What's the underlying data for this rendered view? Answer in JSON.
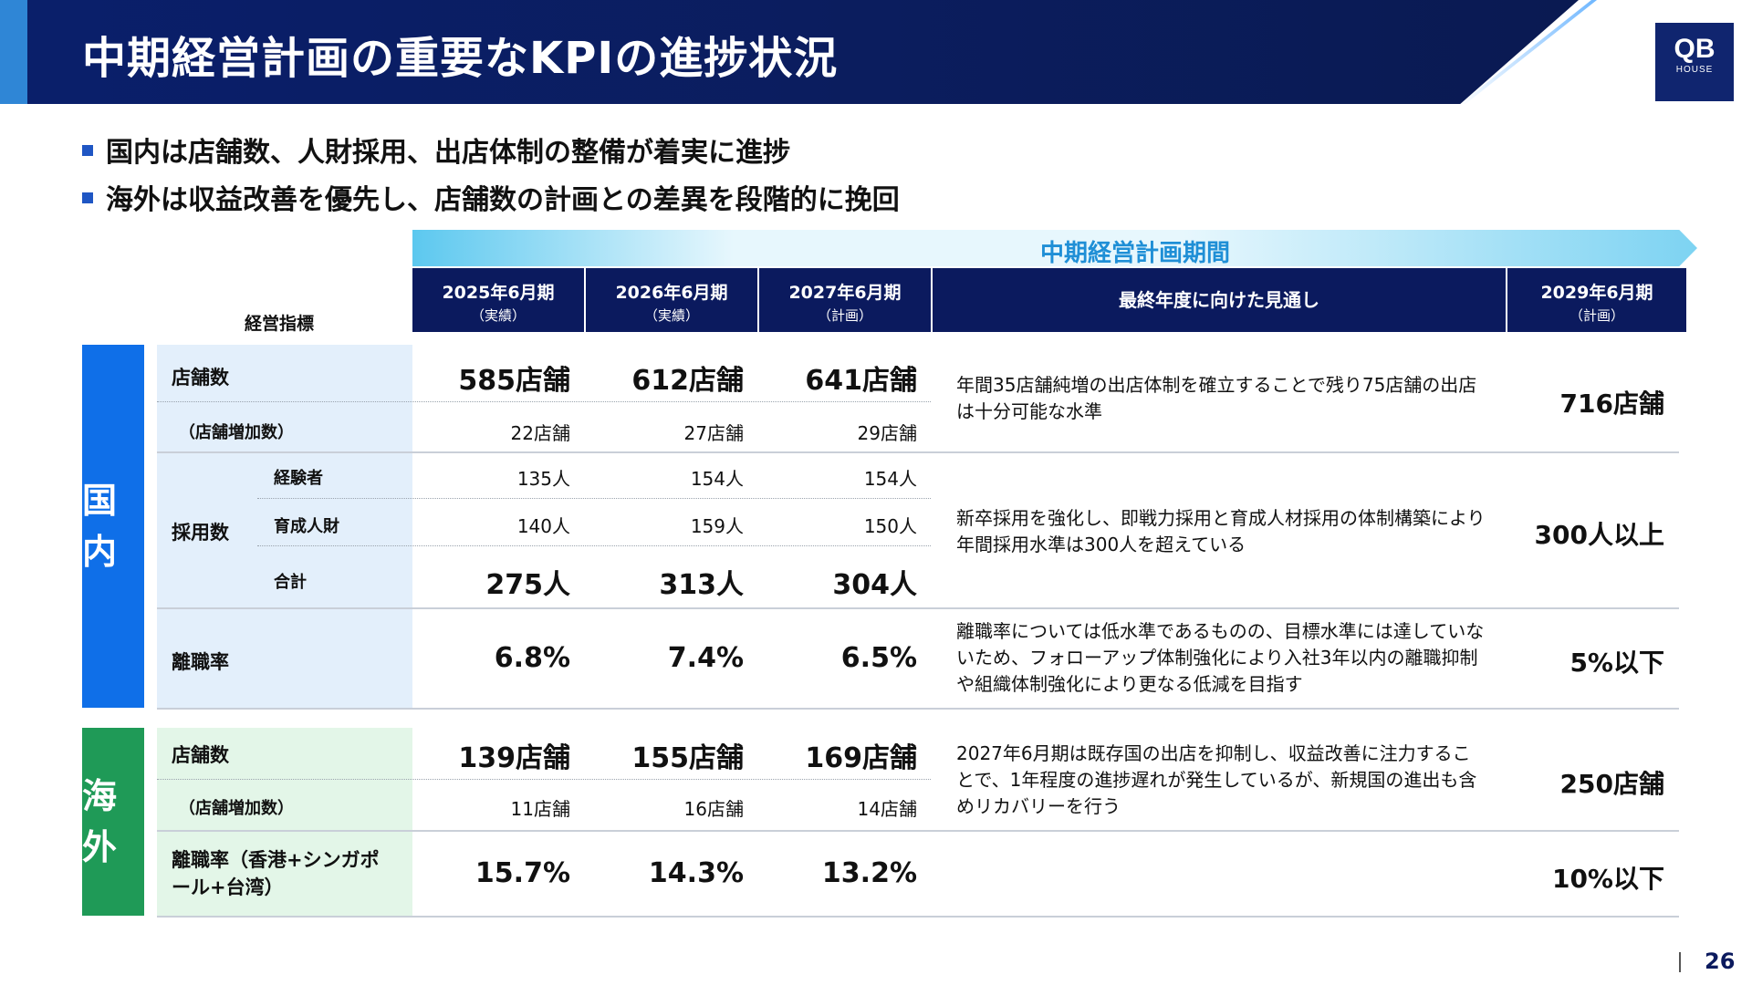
{
  "title": "中期経営計画の重要なKPIの進捗状況",
  "logo": {
    "main": "QB",
    "sub": "HOUSE"
  },
  "bullets": [
    "国内は店舗数、人財採用、出店体制の整備が着実に進捗",
    "海外は収益改善を優先し、店舗数の計画との差異を段階的に挽回"
  ],
  "period_label": "中期経営計画期間",
  "kpi_header": "経営指標",
  "columns": [
    {
      "year": "2025年6月期",
      "sub": "（実績）"
    },
    {
      "year": "2026年6月期",
      "sub": "（実績）"
    },
    {
      "year": "2027年6月期",
      "sub": "（計画）"
    },
    {
      "label": "最終年度に向けた見通し"
    },
    {
      "year": "2029年6月期",
      "sub": "（計画）"
    }
  ],
  "domestic": {
    "region": "国内",
    "stores": {
      "label": "店舗数",
      "values": [
        "585店舗",
        "612店舗",
        "641店舗"
      ],
      "sub_label": "（店舗増加数）",
      "sub_values": [
        "22店舗",
        "27店舗",
        "29店舗"
      ],
      "note": "年間35店舗純増の出店体制を確立することで残り75店舗の出店は十分可能な水準",
      "target": "716店舗"
    },
    "hiring": {
      "label": "採用数",
      "rows": [
        {
          "label": "経験者",
          "values": [
            "135人",
            "154人",
            "154人"
          ]
        },
        {
          "label": "育成人財",
          "values": [
            "140人",
            "159人",
            "150人"
          ]
        },
        {
          "label": "合計",
          "values": [
            "275人",
            "313人",
            "304人"
          ]
        }
      ],
      "note": "新卒採用を強化し、即戦力採用と育成人材採用の体制構築により年間採用水準は300人を超えている",
      "target": "300人以上"
    },
    "turnover": {
      "label": "離職率",
      "values": [
        "6.8%",
        "7.4%",
        "6.5%"
      ],
      "note": "離職率については低水準であるものの、目標水準には達していないため、フォローアップ体制強化により入社3年以内の離職抑制や組織体制強化により更なる低減を目指す",
      "target": "5%以下"
    }
  },
  "overseas": {
    "region": "海外",
    "stores": {
      "label": "店舗数",
      "values": [
        "139店舗",
        "155店舗",
        "169店舗"
      ],
      "sub_label": "（店舗増加数）",
      "sub_values": [
        "11店舗",
        "16店舗",
        "14店舗"
      ],
      "note": "2027年6月期は既存国の出店を抑制し、収益改善に注力することで、1年程度の進捗遅れが発生しているが、新規国の進出も含めリカバリーを行う",
      "target": "250店舗"
    },
    "turnover": {
      "label": "離職率（香港+シンガポール+台湾）",
      "values": [
        "15.7%",
        "14.3%",
        "13.2%"
      ],
      "target": "10%以下"
    }
  },
  "page_number": "26",
  "colors": {
    "navy": "#0b1a5e",
    "domestic": "#0f6fe8",
    "overseas": "#1f9a57",
    "domestic_bg": "#e3effb",
    "overseas_bg": "#e3f6e8"
  }
}
